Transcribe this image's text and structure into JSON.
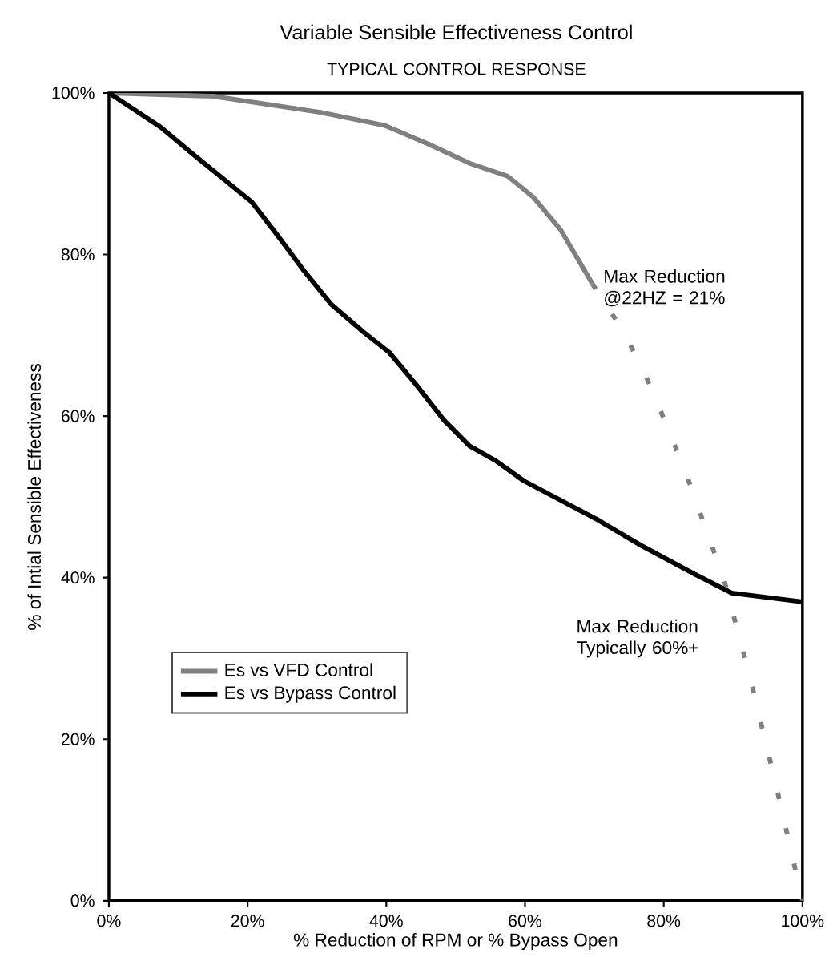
{
  "chart_data": {
    "type": "line",
    "title": "Variable Sensible Effectiveness Control",
    "subtitle": "TYPICAL CONTROL RESPONSE",
    "xlabel": "% Reduction of RPM or % Bypass Open",
    "ylabel": "% of Intial Sensible Effectiveness",
    "xlim": [
      0,
      100
    ],
    "ylim": [
      0,
      100
    ],
    "xticks": [
      {
        "value": 0,
        "label": "0%"
      },
      {
        "value": 20,
        "label": "20%"
      },
      {
        "value": 40,
        "label": "40%"
      },
      {
        "value": 60,
        "label": "60%"
      },
      {
        "value": 80,
        "label": "80%"
      },
      {
        "value": 100,
        "label": "100%"
      }
    ],
    "yticks": [
      {
        "value": 0,
        "label": "0%"
      },
      {
        "value": 20,
        "label": "20%"
      },
      {
        "value": 40,
        "label": "40%"
      },
      {
        "value": 60,
        "label": "60%"
      },
      {
        "value": 80,
        "label": "80%"
      },
      {
        "value": 100,
        "label": "100%"
      }
    ],
    "marker": "none",
    "legend": "left",
    "series": [
      {
        "name": "Es vs VFD Control",
        "color": "#808080",
        "line_style": "solid",
        "x": [
          0,
          15,
          30.5,
          39.7,
          46,
          52,
          57.5,
          61.2,
          65.1,
          69.7
        ],
        "values": [
          100,
          99.6,
          97.6,
          96,
          93.7,
          91.3,
          89.7,
          87.1,
          83.1,
          76.4
        ]
      },
      {
        "color": "#808080",
        "line_style": "dotted",
        "x": [
          69.7,
          74.4,
          78.1,
          83.1,
          88.7,
          92.4,
          96.3,
          100
        ],
        "values": [
          76.4,
          70.2,
          63.7,
          53.2,
          39.7,
          27.8,
          13.9,
          0
        ]
      },
      {
        "name": "Es vs Bypass Control",
        "color": "#000000",
        "line_style": "solid",
        "x": [
          0,
          7.4,
          12,
          16.6,
          20.6,
          24.2,
          28.2,
          32.1,
          36.7,
          40.4,
          44.3,
          48.3,
          52,
          55.9,
          59.8,
          65.1,
          70.4,
          76.7,
          84.3,
          89.8,
          100
        ],
        "values": [
          100,
          95.8,
          92.5,
          89.3,
          86.5,
          82.5,
          77.9,
          73.8,
          70.4,
          67.9,
          63.9,
          59.5,
          56.3,
          54.4,
          52,
          49.6,
          47.2,
          44,
          40.5,
          38.1,
          37
        ]
      }
    ],
    "annotations": [
      {
        "text": "Max Reduction @22HZ = 21%",
        "x": 69.7,
        "y": 76.4
      },
      {
        "text": "Max Reduction Typically 60%+",
        "x": 88.7,
        "y": 37
      }
    ]
  }
}
